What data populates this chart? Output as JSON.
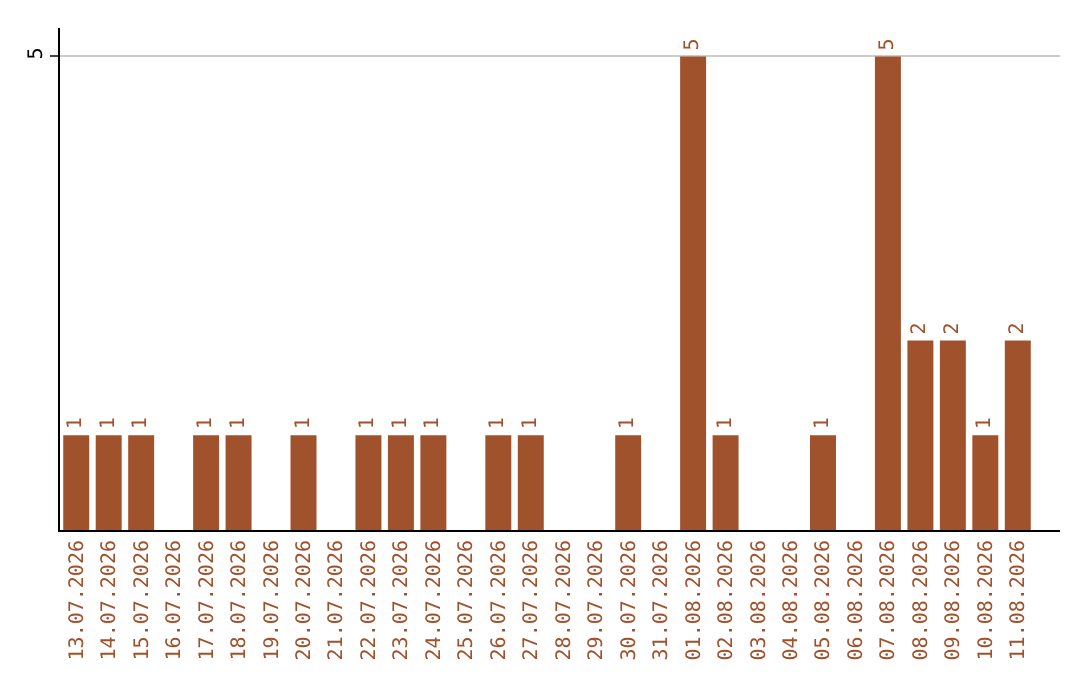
{
  "chart_data": {
    "type": "bar",
    "categories": [
      "13.07.2026",
      "14.07.2026",
      "15.07.2026",
      "16.07.2026",
      "17.07.2026",
      "18.07.2026",
      "19.07.2026",
      "20.07.2026",
      "21.07.2026",
      "22.07.2026",
      "23.07.2026",
      "24.07.2026",
      "25.07.2026",
      "26.07.2026",
      "27.07.2026",
      "28.07.2026",
      "29.07.2026",
      "30.07.2026",
      "31.07.2026",
      "01.08.2026",
      "02.08.2026",
      "03.08.2026",
      "04.08.2026",
      "05.08.2026",
      "06.08.2026",
      "07.08.2026",
      "08.08.2026",
      "09.08.2026",
      "10.08.2026",
      "11.08.2026"
    ],
    "values": [
      1,
      1,
      1,
      0,
      1,
      1,
      0,
      1,
      0,
      1,
      1,
      1,
      0,
      1,
      1,
      0,
      0,
      1,
      0,
      5,
      1,
      0,
      0,
      1,
      0,
      5,
      2,
      2,
      1,
      2
    ],
    "value_labels": [
      "1",
      "1",
      "1",
      null,
      "1",
      "1",
      null,
      "1",
      null,
      "1",
      "1",
      "1",
      null,
      "1",
      "1",
      null,
      null,
      "1",
      null,
      "5",
      "1",
      null,
      null,
      "1",
      null,
      "5",
      "2",
      "2",
      "1",
      "2"
    ],
    "color": "#a0522d",
    "ylim": [
      0,
      5.3
    ],
    "yticks": [
      5
    ],
    "grid": "y",
    "legend": false
  }
}
